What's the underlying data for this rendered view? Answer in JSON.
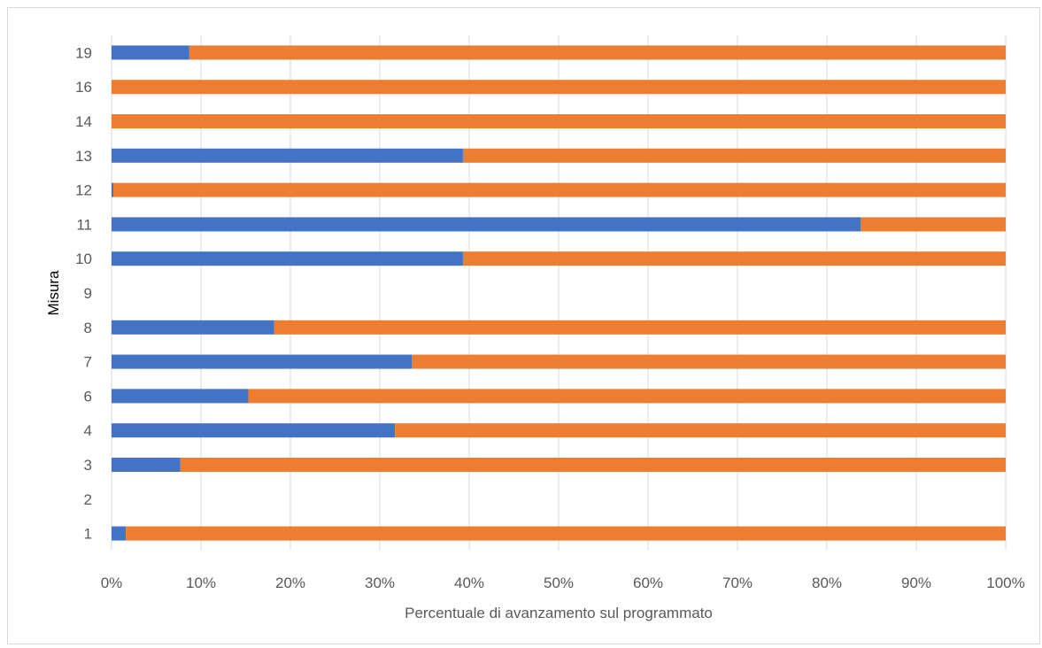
{
  "chart_data": {
    "type": "bar",
    "orientation": "horizontal",
    "stacked": "100%",
    "title": "",
    "xlabel": "Percentuale di avanzamento sul programmato",
    "ylabel": "Misura",
    "xlim": [
      0,
      100
    ],
    "x_ticks": [
      "0%",
      "10%",
      "20%",
      "30%",
      "40%",
      "50%",
      "60%",
      "70%",
      "80%",
      "90%",
      "100%"
    ],
    "grid": "vertical",
    "legend": "none",
    "categories": [
      "1",
      "2",
      "3",
      "4",
      "6",
      "7",
      "8",
      "9",
      "10",
      "11",
      "12",
      "13",
      "14",
      "16",
      "19"
    ],
    "series": [
      {
        "values": [
          1.6,
          0,
          7.7,
          31.7,
          15.3,
          33.6,
          18.2,
          0,
          39.3,
          83.8,
          0.2,
          39.3,
          0,
          0,
          8.7
        ],
        "color": "#4472C4"
      },
      {
        "values": [
          98.4,
          0,
          92.3,
          68.3,
          84.7,
          66.4,
          81.8,
          0,
          60.7,
          16.2,
          99.8,
          60.7,
          100,
          100,
          91.3
        ],
        "color": "#ED7D31"
      }
    ]
  }
}
